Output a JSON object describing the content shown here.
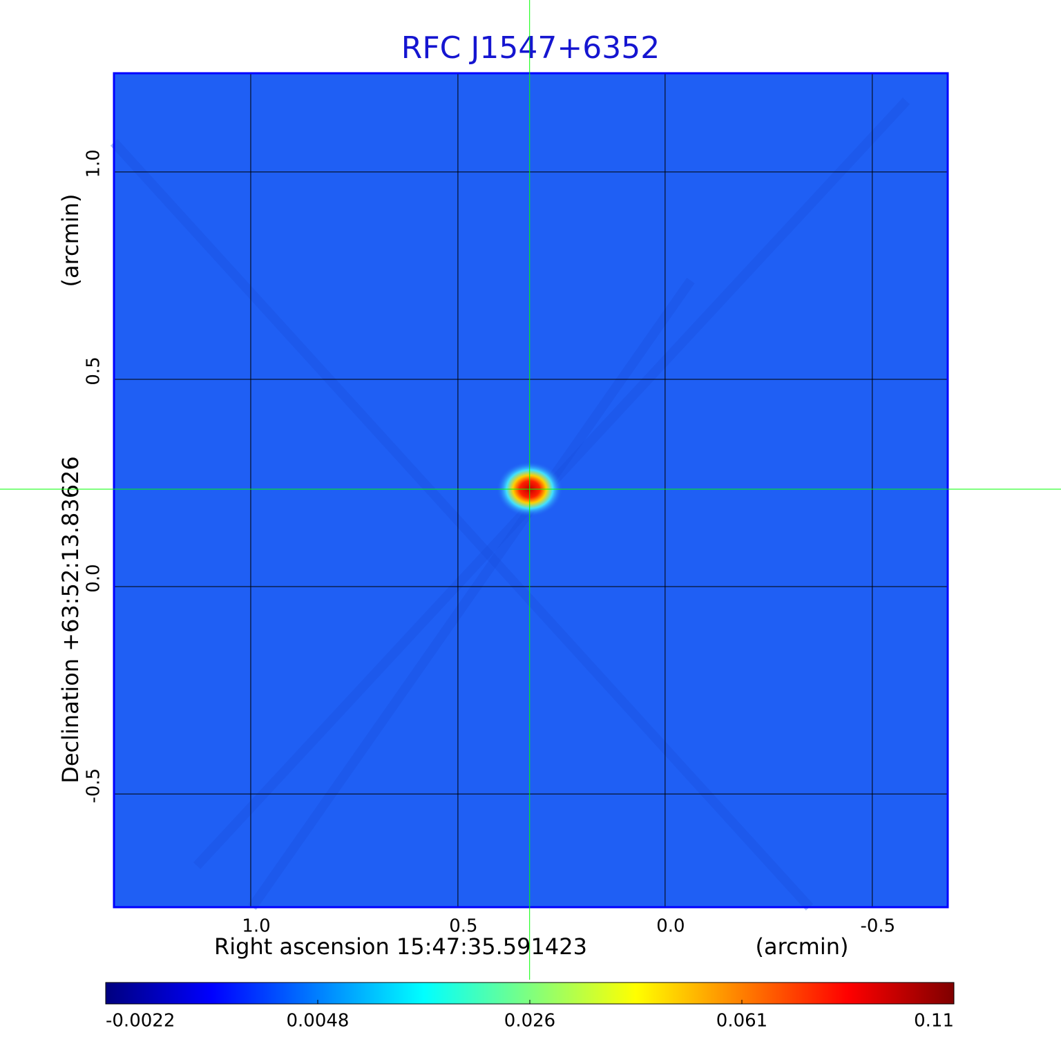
{
  "chart_data": {
    "type": "image",
    "title": "RFC J1547+6352",
    "xlabel": "Right ascension  15:47:35.591423",
    "xunit": "(arcmin)",
    "ylabel": "Declination  +63:52:13.83626",
    "yunit": "(arcmin)",
    "xlim": [
      1.33,
      -0.682
    ],
    "ylim": [
      -0.773,
      1.238
    ],
    "xticks": [
      {
        "value": 1,
        "label": "1.0"
      },
      {
        "value": 0.5,
        "label": "0.5"
      },
      {
        "value": 0,
        "label": "0.0"
      },
      {
        "value": -0.5,
        "label": "-0.5"
      }
    ],
    "yticks": [
      {
        "value": -0.5,
        "label": "-0.5"
      },
      {
        "value": 0,
        "label": "0.0"
      },
      {
        "value": 0.5,
        "label": "0.5"
      },
      {
        "value": 1,
        "label": "1.0"
      }
    ],
    "grid": true,
    "frame_color": "#0000ff",
    "title_color": "#1515d0",
    "background_color": "#1f5ff4",
    "crosshair": {
      "x": 0.327,
      "y": 0.235,
      "color": "#00ff00"
    },
    "colorbar": {
      "ticks": [
        -0.0022,
        0.0048,
        0.026,
        0.061,
        0.11
      ],
      "colormap": [
        "#00007f",
        "#0000ff",
        "#007fff",
        "#00ffff",
        "#7fff7f",
        "#ffff00",
        "#ff7f00",
        "#ff0000",
        "#7f0000"
      ]
    }
  }
}
